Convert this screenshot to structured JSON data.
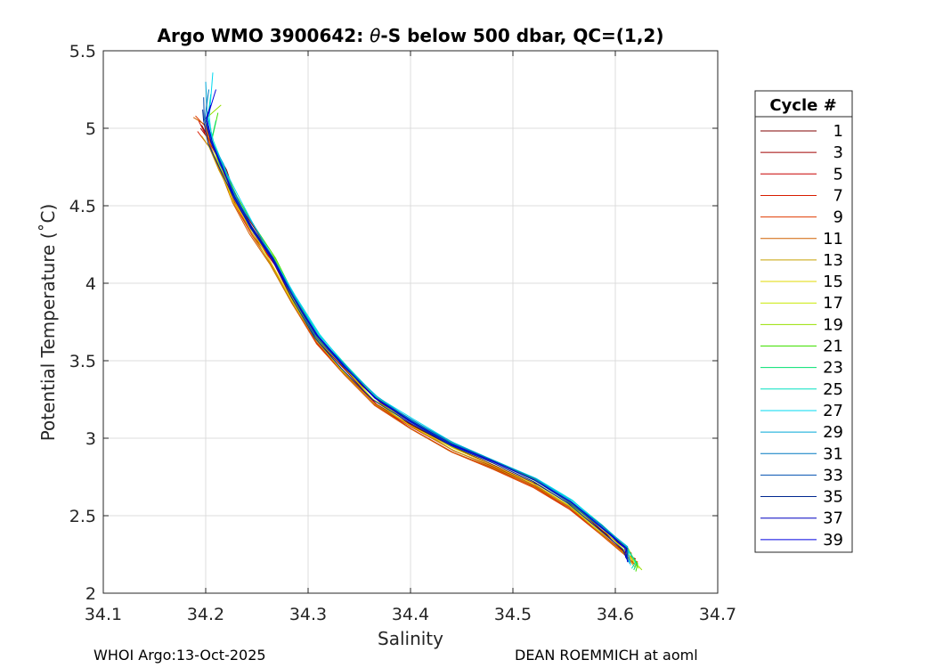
{
  "chart_data": {
    "type": "line",
    "title_prefix": "Argo WMO 3900642: ",
    "title_symbol": "θ",
    "title_suffix": "-S below 500 dbar,  QC=(1,2)",
    "xlabel": "Salinity",
    "ylabel": "Potential Temperature (˚C)",
    "xlim": [
      34.1,
      34.7
    ],
    "ylim": [
      2,
      5.5
    ],
    "xticks": [
      "34.1",
      "34.2",
      "34.3",
      "34.4",
      "34.5",
      "34.6",
      "34.7"
    ],
    "yticks": [
      "2",
      "2.5",
      "3",
      "3.5",
      "4",
      "4.5",
      "5",
      "5.5"
    ],
    "grid": true,
    "legend": {
      "title": "Cycle #",
      "placement": "outside-right",
      "entries": [
        {
          "label": "1",
          "color": "#800000"
        },
        {
          "label": "3",
          "color": "#a00000"
        },
        {
          "label": "5",
          "color": "#c80000"
        },
        {
          "label": "7",
          "color": "#d81c00"
        },
        {
          "label": "9",
          "color": "#e03c00"
        },
        {
          "label": "11",
          "color": "#d06000"
        },
        {
          "label": "13",
          "color": "#c8a000"
        },
        {
          "label": "15",
          "color": "#e0d800"
        },
        {
          "label": "17",
          "color": "#c8e800"
        },
        {
          "label": "19",
          "color": "#98e000"
        },
        {
          "label": "21",
          "color": "#40e000"
        },
        {
          "label": "23",
          "color": "#00e070"
        },
        {
          "label": "25",
          "color": "#00e0c0"
        },
        {
          "label": "27",
          "color": "#00d8f0"
        },
        {
          "label": "29",
          "color": "#00a8d8"
        },
        {
          "label": "31",
          "color": "#0078c0"
        },
        {
          "label": "33",
          "color": "#0050b0"
        },
        {
          "label": "35",
          "color": "#002890"
        },
        {
          "label": "37",
          "color": "#0000c0"
        },
        {
          "label": "39",
          "color": "#0000e0"
        }
      ]
    },
    "base_curve": {
      "salinity": [
        34.2,
        34.205,
        34.215,
        34.228,
        34.245,
        34.265,
        34.285,
        34.308,
        34.335,
        34.365,
        34.4,
        34.44,
        34.48,
        34.52,
        34.555,
        34.585,
        34.61,
        34.62
      ],
      "temperature": [
        5.05,
        4.9,
        4.75,
        4.55,
        4.35,
        4.15,
        3.9,
        3.65,
        3.45,
        3.25,
        3.1,
        2.95,
        2.84,
        2.72,
        2.58,
        2.42,
        2.28,
        2.18
      ]
    },
    "series": [
      {
        "name": "1",
        "s_offset": 0.004,
        "t_shift": -0.02,
        "s_top": 34.196,
        "t_top": 5.02,
        "s_bottom": 34.617,
        "t_bottom": 2.2
      },
      {
        "name": "3",
        "s_offset": 0.003,
        "t_shift": -0.03,
        "s_top": 34.195,
        "t_top": 5.0,
        "s_bottom": 34.62,
        "t_bottom": 2.22
      },
      {
        "name": "5",
        "s_offset": 0.002,
        "t_shift": -0.04,
        "s_top": 34.193,
        "t_top": 5.05,
        "s_bottom": 34.621,
        "t_bottom": 2.2
      },
      {
        "name": "7",
        "s_offset": 0.001,
        "t_shift": -0.03,
        "s_top": 34.192,
        "t_top": 4.98,
        "s_bottom": 34.618,
        "t_bottom": 2.19
      },
      {
        "name": "9",
        "s_offset": 0.0,
        "t_shift": -0.04,
        "s_top": 34.19,
        "t_top": 5.08,
        "s_bottom": 34.622,
        "t_bottom": 2.2
      },
      {
        "name": "11",
        "s_offset": -0.001,
        "t_shift": -0.03,
        "s_top": 34.188,
        "t_top": 5.07,
        "s_bottom": 34.62,
        "t_bottom": 2.18
      },
      {
        "name": "13",
        "s_offset": -0.001,
        "t_shift": -0.02,
        "s_top": 34.196,
        "t_top": 4.95,
        "s_bottom": 34.619,
        "t_bottom": 2.17
      },
      {
        "name": "15",
        "s_offset": -0.001,
        "t_shift": -0.01,
        "s_top": 34.2,
        "t_top": 4.97,
        "s_bottom": 34.621,
        "t_bottom": 2.19
      },
      {
        "name": "17",
        "s_offset": 0.0,
        "t_shift": 0.0,
        "s_top": 34.205,
        "t_top": 5.0,
        "s_bottom": 34.623,
        "t_bottom": 2.16
      },
      {
        "name": "19",
        "s_offset": 0.001,
        "t_shift": 0.01,
        "s_top": 34.215,
        "t_top": 5.15,
        "s_bottom": 34.626,
        "t_bottom": 2.15
      },
      {
        "name": "21",
        "s_offset": 0.002,
        "t_shift": 0.01,
        "s_top": 34.212,
        "t_top": 5.1,
        "s_bottom": 34.62,
        "t_bottom": 2.14
      },
      {
        "name": "23",
        "s_offset": 0.0,
        "t_shift": 0.01,
        "s_top": 34.21,
        "t_top": 5.05,
        "s_bottom": 34.618,
        "t_bottom": 2.15
      },
      {
        "name": "25",
        "s_offset": 0.001,
        "t_shift": 0.02,
        "s_top": 34.205,
        "t_top": 5.22,
        "s_bottom": 34.616,
        "t_bottom": 2.16
      },
      {
        "name": "27",
        "s_offset": 0.002,
        "t_shift": 0.02,
        "s_top": 34.207,
        "t_top": 5.36,
        "s_bottom": 34.615,
        "t_bottom": 2.18
      },
      {
        "name": "29",
        "s_offset": 0.001,
        "t_shift": 0.02,
        "s_top": 34.2,
        "t_top": 5.3,
        "s_bottom": 34.614,
        "t_bottom": 2.19
      },
      {
        "name": "31",
        "s_offset": 0.0,
        "t_shift": 0.02,
        "s_top": 34.203,
        "t_top": 5.25,
        "s_bottom": 34.613,
        "t_bottom": 2.2
      },
      {
        "name": "33",
        "s_offset": 0.0,
        "t_shift": 0.01,
        "s_top": 34.198,
        "t_top": 5.2,
        "s_bottom": 34.612,
        "t_bottom": 2.21
      },
      {
        "name": "35",
        "s_offset": -0.001,
        "t_shift": 0.0,
        "s_top": 34.197,
        "t_top": 5.12,
        "s_bottom": 34.611,
        "t_bottom": 2.22
      },
      {
        "name": "37",
        "s_offset": 0.0,
        "t_shift": 0.01,
        "s_top": 34.205,
        "t_top": 5.15,
        "s_bottom": 34.61,
        "t_bottom": 2.23
      },
      {
        "name": "39",
        "s_offset": 0.0,
        "t_shift": 0.01,
        "s_top": 34.21,
        "t_top": 5.25,
        "s_bottom": 34.612,
        "t_bottom": 2.2
      }
    ]
  },
  "footer": {
    "left": "WHOI Argo:13-Oct-2025",
    "right": "DEAN ROEMMICH at aoml"
  }
}
